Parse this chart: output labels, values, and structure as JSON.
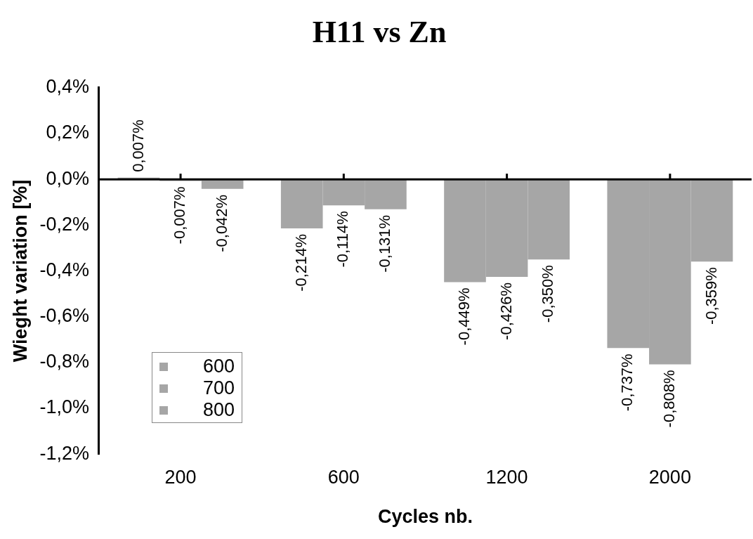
{
  "chart_data": {
    "type": "bar",
    "title": "H11 vs Zn",
    "xlabel": "Cycles nb.",
    "ylabel": "Wieght variation [%]",
    "categories": [
      "200",
      "600",
      "1200",
      "2000"
    ],
    "series": [
      {
        "name": "600",
        "color": "#a6a6a6",
        "values": [
          0.007,
          -0.214,
          -0.449,
          -0.737
        ],
        "value_labels": [
          "0,007%",
          "-0,214%",
          "-0,449%",
          "-0,737%"
        ]
      },
      {
        "name": "700",
        "color": "#a6a6a6",
        "values": [
          -0.007,
          -0.114,
          -0.426,
          -0.808
        ],
        "value_labels": [
          "-0,007%",
          "-0,114%",
          "-0,426%",
          "-0,808%"
        ]
      },
      {
        "name": "800",
        "color": "#a6a6a6",
        "values": [
          -0.042,
          -0.131,
          -0.35,
          -0.359
        ],
        "value_labels": [
          "-0,042%",
          "-0,131%",
          "-0,350%",
          "-0,359%"
        ]
      }
    ],
    "ylim": [
      -1.2,
      0.4
    ],
    "yticks": [
      {
        "value": -1.2,
        "label": "-1,2%"
      },
      {
        "value": -1.0,
        "label": "-1,0%"
      },
      {
        "value": -0.8,
        "label": "-0,8%"
      },
      {
        "value": -0.6,
        "label": "-0,6%"
      },
      {
        "value": -0.4,
        "label": "-0,4%"
      },
      {
        "value": -0.2,
        "label": "-0,2%"
      },
      {
        "value": 0,
        "label": "0,0%"
      },
      {
        "value": 0.2,
        "label": "0,2%"
      },
      {
        "value": 0.4,
        "label": "0,4%"
      }
    ],
    "ref_lines": [
      {
        "axis": "y",
        "value": 0,
        "color": "#000000"
      }
    ],
    "grid": false,
    "legend": "bottom left"
  }
}
